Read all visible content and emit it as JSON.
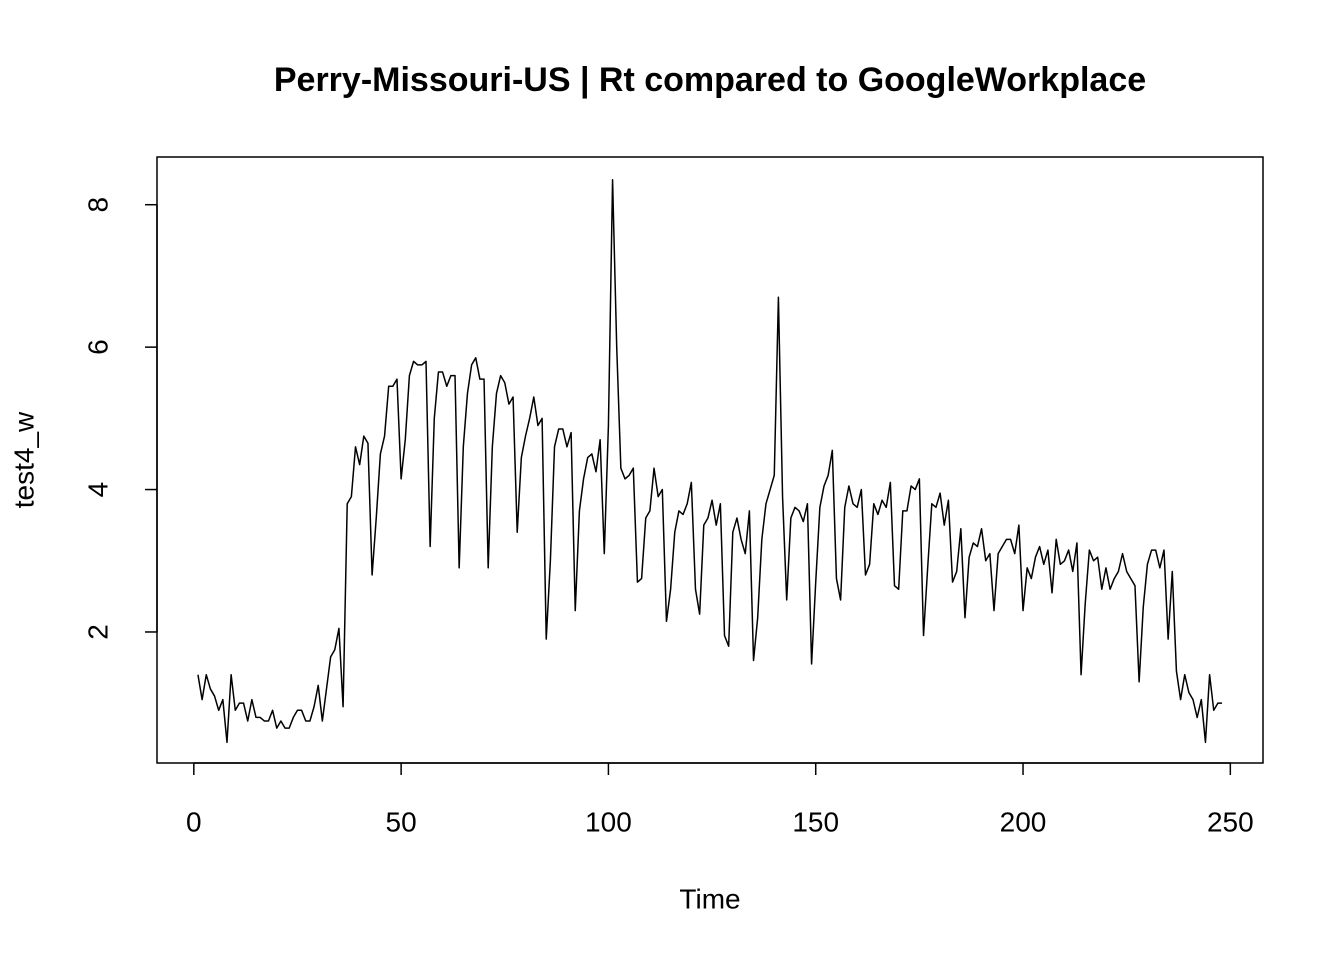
{
  "chart_data": {
    "type": "line",
    "title": "Perry-Missouri-US | Rt compared to GoogleWorkplace",
    "x_label": "Time",
    "y_label": "test4_w",
    "color": "#000000",
    "xlim": [
      -8.88,
      257.88
    ],
    "ylim": [
      0.16,
      8.67
    ],
    "xticks": [
      0,
      50,
      100,
      150,
      200,
      250
    ],
    "yticks": [
      2,
      4,
      6,
      8
    ],
    "x": [
      1,
      2,
      3,
      4,
      5,
      6,
      7,
      8,
      9,
      10,
      11,
      12,
      13,
      14,
      15,
      16,
      17,
      18,
      19,
      20,
      21,
      22,
      23,
      24,
      25,
      26,
      27,
      28,
      29,
      30,
      31,
      32,
      33,
      34,
      35,
      36,
      37,
      38,
      39,
      40,
      41,
      42,
      43,
      44,
      45,
      46,
      47,
      48,
      49,
      50,
      51,
      52,
      53,
      54,
      55,
      56,
      57,
      58,
      59,
      60,
      61,
      62,
      63,
      64,
      65,
      66,
      67,
      68,
      69,
      70,
      71,
      72,
      73,
      74,
      75,
      76,
      77,
      78,
      79,
      80,
      81,
      82,
      83,
      84,
      85,
      86,
      87,
      88,
      89,
      90,
      91,
      92,
      93,
      94,
      95,
      96,
      97,
      98,
      99,
      100,
      101,
      102,
      103,
      104,
      105,
      106,
      107,
      108,
      109,
      110,
      111,
      112,
      113,
      114,
      115,
      116,
      117,
      118,
      119,
      120,
      121,
      122,
      123,
      124,
      125,
      126,
      127,
      128,
      129,
      130,
      131,
      132,
      133,
      134,
      135,
      136,
      137,
      138,
      139,
      140,
      141,
      142,
      143,
      144,
      145,
      146,
      147,
      148,
      149,
      150,
      151,
      152,
      153,
      154,
      155,
      156,
      157,
      158,
      159,
      160,
      161,
      162,
      163,
      164,
      165,
      166,
      167,
      168,
      169,
      170,
      171,
      172,
      173,
      174,
      175,
      176,
      177,
      178,
      179,
      180,
      181,
      182,
      183,
      184,
      185,
      186,
      187,
      188,
      189,
      190,
      191,
      192,
      193,
      194,
      195,
      196,
      197,
      198,
      199,
      200,
      201,
      202,
      203,
      204,
      205,
      206,
      207,
      208,
      209,
      210,
      211,
      212,
      213,
      214,
      215,
      216,
      217,
      218,
      219,
      220,
      221,
      222,
      223,
      224,
      225,
      226,
      227,
      228,
      229,
      230,
      231,
      232,
      233,
      234,
      235,
      236,
      237,
      238,
      239,
      240,
      241,
      242,
      243,
      244,
      245,
      246,
      247,
      248
    ],
    "values": [
      1.4,
      1.05,
      1.4,
      1.2,
      1.1,
      0.9,
      1.05,
      0.45,
      1.4,
      0.9,
      1.0,
      1.0,
      0.75,
      1.05,
      0.8,
      0.8,
      0.75,
      0.75,
      0.9,
      0.65,
      0.75,
      0.65,
      0.65,
      0.8,
      0.9,
      0.9,
      0.75,
      0.75,
      0.95,
      1.25,
      0.75,
      1.2,
      1.65,
      1.75,
      2.05,
      0.95,
      3.8,
      3.9,
      4.6,
      4.35,
      4.75,
      4.65,
      2.8,
      3.6,
      4.5,
      4.75,
      5.45,
      5.45,
      5.55,
      4.15,
      4.7,
      5.6,
      5.8,
      5.75,
      5.75,
      5.8,
      3.2,
      5.0,
      5.65,
      5.65,
      5.45,
      5.6,
      5.6,
      2.9,
      4.6,
      5.35,
      5.75,
      5.85,
      5.55,
      5.55,
      2.9,
      4.6,
      5.35,
      5.6,
      5.5,
      5.2,
      5.3,
      3.4,
      4.45,
      4.75,
      5.0,
      5.3,
      4.9,
      5.0,
      1.9,
      3.0,
      4.6,
      4.85,
      4.85,
      4.6,
      4.8,
      2.3,
      3.7,
      4.15,
      4.45,
      4.5,
      4.25,
      4.7,
      3.1,
      4.9,
      8.35,
      6.0,
      4.3,
      4.15,
      4.2,
      4.3,
      2.7,
      2.75,
      3.6,
      3.7,
      4.3,
      3.9,
      4.0,
      2.15,
      2.6,
      3.4,
      3.7,
      3.65,
      3.8,
      4.1,
      2.6,
      2.25,
      3.5,
      3.6,
      3.85,
      3.5,
      3.8,
      1.95,
      1.8,
      3.4,
      3.6,
      3.3,
      3.1,
      3.7,
      1.6,
      2.2,
      3.3,
      3.8,
      4.0,
      4.2,
      6.7,
      3.9,
      2.45,
      3.6,
      3.75,
      3.7,
      3.55,
      3.8,
      1.55,
      2.7,
      3.75,
      4.05,
      4.2,
      4.55,
      2.75,
      2.45,
      3.75,
      4.05,
      3.8,
      3.75,
      4.0,
      2.8,
      2.95,
      3.8,
      3.65,
      3.85,
      3.75,
      4.1,
      2.65,
      2.6,
      3.7,
      3.7,
      4.05,
      4.0,
      4.15,
      1.95,
      2.9,
      3.8,
      3.75,
      3.95,
      3.5,
      3.85,
      2.7,
      2.85,
      3.45,
      2.2,
      3.05,
      3.25,
      3.2,
      3.45,
      3.0,
      3.1,
      2.3,
      3.1,
      3.2,
      3.3,
      3.3,
      3.1,
      3.5,
      2.3,
      2.9,
      2.75,
      3.05,
      3.2,
      2.95,
      3.15,
      2.55,
      3.3,
      2.95,
      3.0,
      3.15,
      2.85,
      3.25,
      1.4,
      2.4,
      3.15,
      3.0,
      3.05,
      2.6,
      2.9,
      2.6,
      2.75,
      2.85,
      3.1,
      2.85,
      2.75,
      2.65,
      1.3,
      2.35,
      2.95,
      3.15,
      3.15,
      2.9,
      3.15,
      1.9,
      2.85,
      1.45,
      1.05,
      1.4,
      1.15,
      1.05,
      0.8,
      1.05,
      0.45,
      1.4,
      0.9,
      1.0,
      1.0
    ]
  }
}
